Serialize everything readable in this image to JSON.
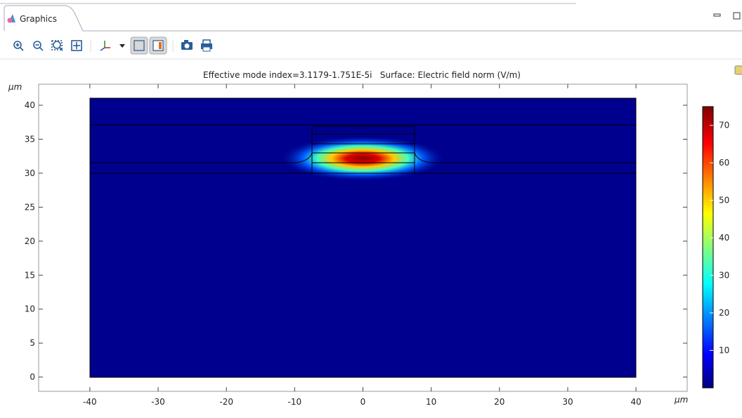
{
  "tab": {
    "title": "Graphics"
  },
  "plot": {
    "title": "Effective mode index=3.1179-1.751E-5i   Surface: Electric field norm (V/m)",
    "x_unit": "µm",
    "y_unit": "µm",
    "xlim": [
      -47.5,
      47.5
    ],
    "ylim": [
      -2.1,
      43.1
    ],
    "xticks": [
      -40,
      -30,
      -20,
      -10,
      0,
      10,
      20,
      30,
      40
    ],
    "yticks": [
      0,
      5,
      10,
      15,
      20,
      25,
      30,
      35,
      40
    ],
    "colorbar": {
      "lim": [
        0,
        75
      ],
      "ticks": [
        10,
        20,
        30,
        40,
        50,
        60,
        70
      ]
    }
  }
}
